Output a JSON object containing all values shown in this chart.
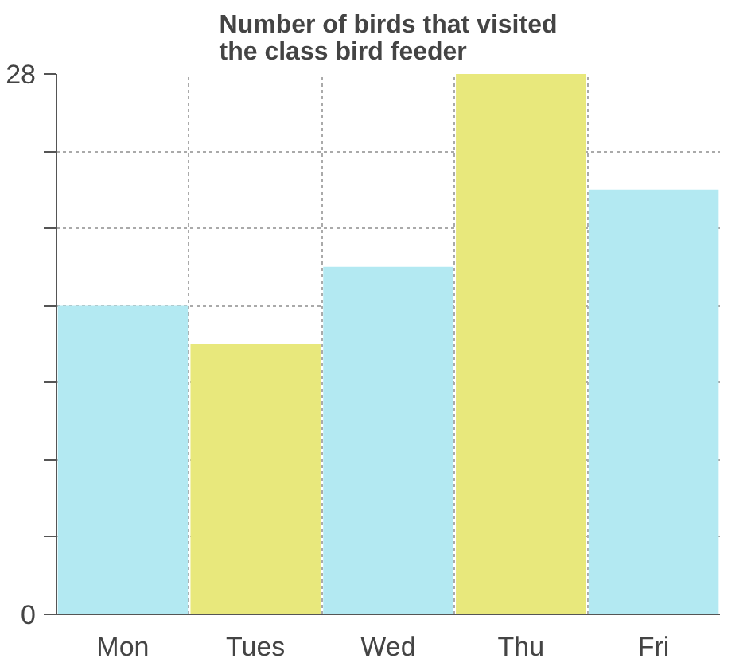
{
  "chart_data": {
    "type": "bar",
    "title": "Number of birds that visited\nthe class bird feeder",
    "categories": [
      "Mon",
      "Tues",
      "Wed",
      "Thu",
      "Fri"
    ],
    "values": [
      16,
      14,
      18,
      28,
      22
    ],
    "colors": [
      "#b3e9f2",
      "#e8e87c",
      "#b3e9f2",
      "#e8e87c",
      "#b3e9f2"
    ],
    "ylim": [
      0,
      28
    ],
    "yticks": [
      0,
      {
        "value": 4,
        "label": null
      },
      {
        "value": 8,
        "label": null
      },
      {
        "value": 12,
        "label": null
      },
      {
        "value": 16,
        "label": null
      },
      {
        "value": 20,
        "label": null
      },
      {
        "value": 24,
        "label": null
      },
      28
    ],
    "grid": true
  }
}
